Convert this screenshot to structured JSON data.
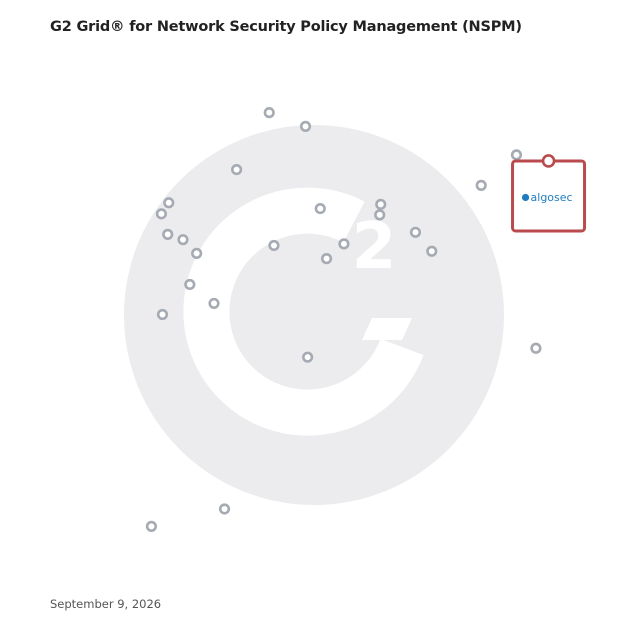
{
  "header": {
    "title": "G2 Grid® for Network Security Policy Management (NSPM)"
  },
  "footer": {
    "date": "September 9, 2026"
  },
  "colors": {
    "frame_top_left": "#5b3fa8",
    "frame_top_right": "#e8582c",
    "frame_bottom_left": "#2a97d1",
    "frame_bottom_right": "#7a3fa8",
    "dot": "#a6abb3",
    "highlight": "#b94a4e",
    "watermark": "#ececee",
    "brand_text": "#1f7cc0"
  },
  "icons": {
    "watermark": "g2-logo-icon",
    "brand_logo": "algosec-logo-icon"
  },
  "chart_data": {
    "type": "scatter",
    "title": "G2 Grid® for Network Security Policy Management (NSPM)",
    "xlabel": "",
    "ylabel": "",
    "xlim": [
      0,
      1
    ],
    "ylim": [
      0,
      1
    ],
    "grid": "quadrant lines at center",
    "legend": "none",
    "points": [
      {
        "x": 0.413,
        "y": 0.883
      },
      {
        "x": 0.482,
        "y": 0.857
      },
      {
        "x": 0.351,
        "y": 0.775
      },
      {
        "x": 0.883,
        "y": 0.803
      },
      {
        "x": 0.816,
        "y": 0.745
      },
      {
        "x": 0.222,
        "y": 0.712
      },
      {
        "x": 0.208,
        "y": 0.691
      },
      {
        "x": 0.51,
        "y": 0.701
      },
      {
        "x": 0.625,
        "y": 0.709
      },
      {
        "x": 0.623,
        "y": 0.689
      },
      {
        "x": 0.22,
        "y": 0.652
      },
      {
        "x": 0.249,
        "y": 0.642
      },
      {
        "x": 0.275,
        "y": 0.616
      },
      {
        "x": 0.422,
        "y": 0.631
      },
      {
        "x": 0.555,
        "y": 0.634
      },
      {
        "x": 0.691,
        "y": 0.656
      },
      {
        "x": 0.722,
        "y": 0.62
      },
      {
        "x": 0.522,
        "y": 0.606
      },
      {
        "x": 0.262,
        "y": 0.557
      },
      {
        "x": 0.308,
        "y": 0.521
      },
      {
        "x": 0.21,
        "y": 0.5
      },
      {
        "x": 0.486,
        "y": 0.419
      },
      {
        "x": 0.92,
        "y": 0.436
      },
      {
        "x": 0.328,
        "y": 0.131
      },
      {
        "x": 0.189,
        "y": 0.098
      }
    ],
    "highlighted": {
      "name": "algosec",
      "x": 0.944,
      "y": 0.723
    }
  }
}
